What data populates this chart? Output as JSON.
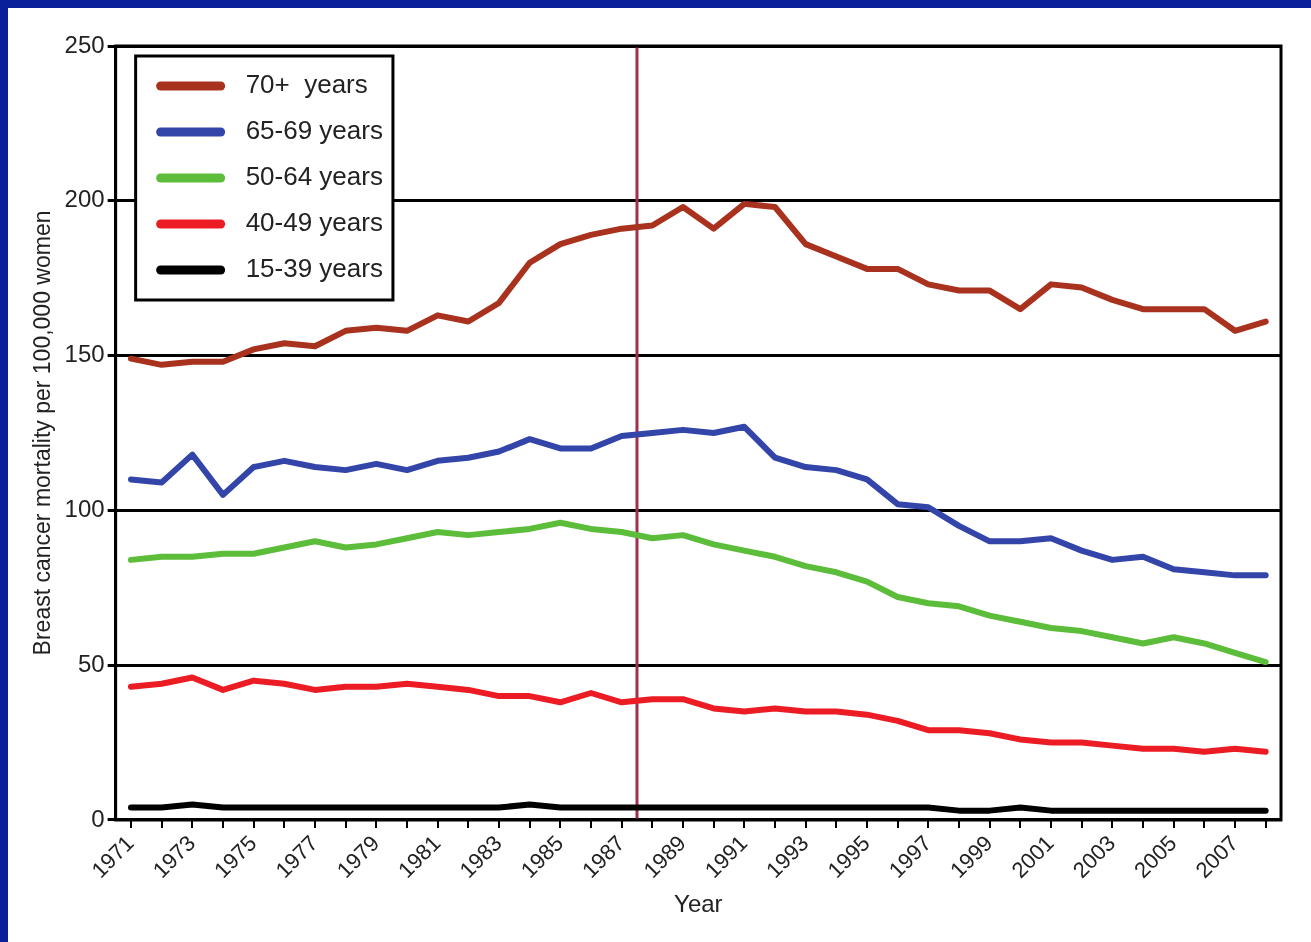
{
  "chart_data": {
    "type": "line",
    "xlabel": "Year",
    "ylabel": "Breast cancer mortality per 100,000 women",
    "x": [
      1971,
      1972,
      1973,
      1974,
      1975,
      1976,
      1977,
      1978,
      1979,
      1980,
      1981,
      1982,
      1983,
      1984,
      1985,
      1986,
      1987,
      1988,
      1989,
      1990,
      1991,
      1992,
      1993,
      1994,
      1995,
      1996,
      1997,
      1998,
      1999,
      2000,
      2001,
      2002,
      2003,
      2004,
      2005,
      2006,
      2007,
      2008
    ],
    "xlim": [
      1970.5,
      2008.5
    ],
    "xticks": [
      1971,
      {
        "value": 1972,
        "label": null
      },
      1973,
      {
        "value": 1974,
        "label": null
      },
      1975,
      {
        "value": 1976,
        "label": null
      },
      1977,
      {
        "value": 1978,
        "label": null
      },
      1979,
      {
        "value": 1980,
        "label": null
      },
      1981,
      {
        "value": 1982,
        "label": null
      },
      1983,
      {
        "value": 1984,
        "label": null
      },
      1985,
      {
        "value": 1986,
        "label": null
      },
      1987,
      {
        "value": 1988,
        "label": null
      },
      1989,
      {
        "value": 1990,
        "label": null
      },
      1991,
      {
        "value": 1992,
        "label": null
      },
      1993,
      {
        "value": 1994,
        "label": null
      },
      1995,
      {
        "value": 1996,
        "label": null
      },
      1997,
      {
        "value": 1998,
        "label": null
      },
      1999,
      {
        "value": 2000,
        "label": null
      },
      2001,
      {
        "value": 2002,
        "label": null
      },
      2003,
      {
        "value": 2004,
        "label": null
      },
      2005,
      {
        "value": 2006,
        "label": null
      },
      2007,
      {
        "value": 2008,
        "label": null
      }
    ],
    "ylim": [
      0,
      250
    ],
    "yticks": [
      0,
      50,
      100,
      150,
      200,
      250
    ],
    "grid": "y",
    "legend": "top left",
    "marker": "none",
    "line_style": "solid",
    "series": [
      {
        "name": "70+  years",
        "color": "#a8321e",
        "values": [
          149,
          147,
          148,
          148,
          152,
          154,
          153,
          158,
          159,
          158,
          163,
          161,
          167,
          180,
          186,
          189,
          191,
          192,
          198,
          191,
          199,
          198,
          186,
          182,
          178,
          178,
          173,
          171,
          171,
          165,
          173,
          172,
          168,
          165,
          165,
          165,
          158,
          161
        ]
      },
      {
        "name": "65-69 years",
        "color": "#3345a8",
        "values": [
          110,
          109,
          118,
          105,
          114,
          116,
          114,
          113,
          115,
          113,
          116,
          117,
          119,
          123,
          120,
          120,
          124,
          125,
          126,
          125,
          127,
          117,
          114,
          113,
          110,
          102,
          101,
          95,
          90,
          90,
          91,
          87,
          84,
          85,
          81,
          80,
          79,
          79
        ]
      },
      {
        "name": "50-64 years",
        "color": "#5cbd3a",
        "values": [
          84,
          85,
          85,
          86,
          86,
          88,
          90,
          88,
          89,
          91,
          93,
          92,
          93,
          94,
          96,
          94,
          93,
          91,
          92,
          89,
          87,
          85,
          82,
          80,
          77,
          72,
          70,
          69,
          66,
          64,
          62,
          61,
          59,
          57,
          59,
          57,
          54,
          51
        ]
      },
      {
        "name": "40-49 years",
        "color": "#ec1c24",
        "values": [
          43,
          44,
          46,
          42,
          45,
          44,
          42,
          43,
          43,
          44,
          43,
          42,
          40,
          40,
          38,
          41,
          38,
          39,
          39,
          36,
          35,
          36,
          35,
          35,
          34,
          32,
          29,
          29,
          28,
          26,
          25,
          25,
          24,
          23,
          23,
          22,
          23,
          22
        ]
      },
      {
        "name": "15-39 years",
        "color": "#000000",
        "values": [
          4,
          4,
          5,
          4,
          4,
          4,
          4,
          4,
          4,
          4,
          4,
          4,
          4,
          5,
          4,
          4,
          4,
          4,
          4,
          4,
          4,
          4,
          4,
          4,
          4,
          4,
          4,
          3,
          3,
          4,
          3,
          3,
          3,
          3,
          3,
          3,
          3,
          3
        ]
      }
    ],
    "ref_lines": [
      {
        "axis": "x",
        "value": 1987.5,
        "color": "#a0304e"
      }
    ]
  }
}
